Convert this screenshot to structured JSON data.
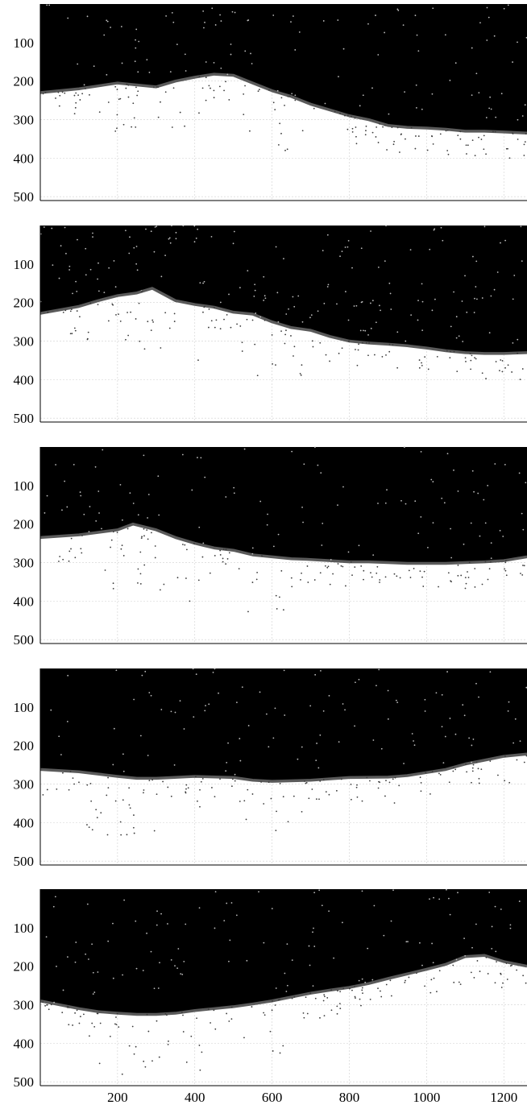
{
  "colors": {
    "background": "#ffffff",
    "fill_above_boundary": "#000000",
    "boundary_line": "#5a5a5a",
    "scatter_points": "#3a3a3a",
    "gridlines": "#d0d0d0",
    "axis": "#000000"
  },
  "chart_data": [
    {
      "type": "area",
      "panel": 1,
      "xlim": [
        0,
        1260
      ],
      "ylim": [
        0,
        510
      ],
      "y_inverted": true,
      "grid": true,
      "yticks": [
        100,
        200,
        300,
        400,
        500
      ],
      "xticks": [],
      "boundary": {
        "x": [
          0,
          100,
          200,
          250,
          300,
          350,
          400,
          450,
          500,
          550,
          600,
          650,
          700,
          750,
          800,
          850,
          900,
          950,
          1000,
          1050,
          1100,
          1150,
          1200,
          1260
        ],
        "y": [
          230,
          220,
          205,
          210,
          215,
          200,
          190,
          182,
          185,
          205,
          225,
          240,
          260,
          275,
          290,
          300,
          315,
          320,
          322,
          325,
          330,
          330,
          332,
          335
        ]
      },
      "scatter_density": 260
    },
    {
      "type": "area",
      "panel": 2,
      "xlim": [
        0,
        1260
      ],
      "ylim": [
        0,
        510
      ],
      "y_inverted": true,
      "grid": true,
      "yticks": [
        100,
        200,
        300,
        400,
        500
      ],
      "xticks": [],
      "boundary": {
        "x": [
          0,
          100,
          150,
          200,
          250,
          290,
          350,
          400,
          450,
          500,
          550,
          600,
          650,
          700,
          750,
          800,
          850,
          900,
          950,
          1000,
          1050,
          1100,
          1150,
          1200,
          1260
        ],
        "y": [
          228,
          210,
          195,
          182,
          175,
          163,
          195,
          205,
          212,
          225,
          230,
          250,
          265,
          272,
          288,
          300,
          305,
          308,
          312,
          318,
          325,
          330,
          332,
          332,
          330
        ]
      },
      "scatter_density": 300
    },
    {
      "type": "area",
      "panel": 3,
      "xlim": [
        0,
        1260
      ],
      "ylim": [
        0,
        510
      ],
      "y_inverted": true,
      "grid": true,
      "yticks": [
        100,
        200,
        300,
        400,
        500
      ],
      "xticks": [],
      "boundary": {
        "x": [
          0,
          100,
          200,
          240,
          300,
          350,
          400,
          450,
          500,
          550,
          600,
          650,
          700,
          750,
          800,
          850,
          900,
          950,
          1000,
          1050,
          1100,
          1150,
          1200,
          1260
        ],
        "y": [
          235,
          228,
          215,
          200,
          215,
          235,
          250,
          262,
          268,
          280,
          285,
          290,
          292,
          295,
          298,
          298,
          300,
          302,
          302,
          302,
          300,
          298,
          295,
          285
        ]
      },
      "scatter_density": 240
    },
    {
      "type": "area",
      "panel": 4,
      "xlim": [
        0,
        1260
      ],
      "ylim": [
        0,
        510
      ],
      "y_inverted": true,
      "grid": true,
      "yticks": [
        100,
        200,
        300,
        400,
        500
      ],
      "xticks": [],
      "boundary": {
        "x": [
          0,
          100,
          200,
          250,
          300,
          400,
          500,
          550,
          600,
          700,
          800,
          900,
          950,
          1000,
          1050,
          1100,
          1150,
          1200,
          1260
        ],
        "y": [
          262,
          268,
          280,
          285,
          285,
          280,
          283,
          290,
          293,
          290,
          283,
          282,
          278,
          270,
          262,
          248,
          238,
          228,
          222
        ]
      },
      "scatter_density": 240
    },
    {
      "type": "area",
      "panel": 5,
      "xlim": [
        0,
        1260
      ],
      "ylim": [
        0,
        510
      ],
      "y_inverted": true,
      "grid": true,
      "yticks": [
        100,
        200,
        300,
        400,
        500
      ],
      "xticks": [
        200,
        400,
        600,
        800,
        1000,
        1200
      ],
      "boundary": {
        "x": [
          0,
          50,
          100,
          150,
          200,
          250,
          300,
          350,
          400,
          450,
          500,
          550,
          600,
          650,
          700,
          750,
          800,
          850,
          900,
          950,
          1000,
          1050,
          1100,
          1150,
          1200,
          1260
        ],
        "y": [
          290,
          300,
          310,
          318,
          322,
          325,
          325,
          322,
          315,
          310,
          305,
          298,
          290,
          280,
          270,
          262,
          255,
          245,
          232,
          220,
          208,
          195,
          175,
          172,
          188,
          200
        ]
      },
      "scatter_density": 260
    }
  ]
}
